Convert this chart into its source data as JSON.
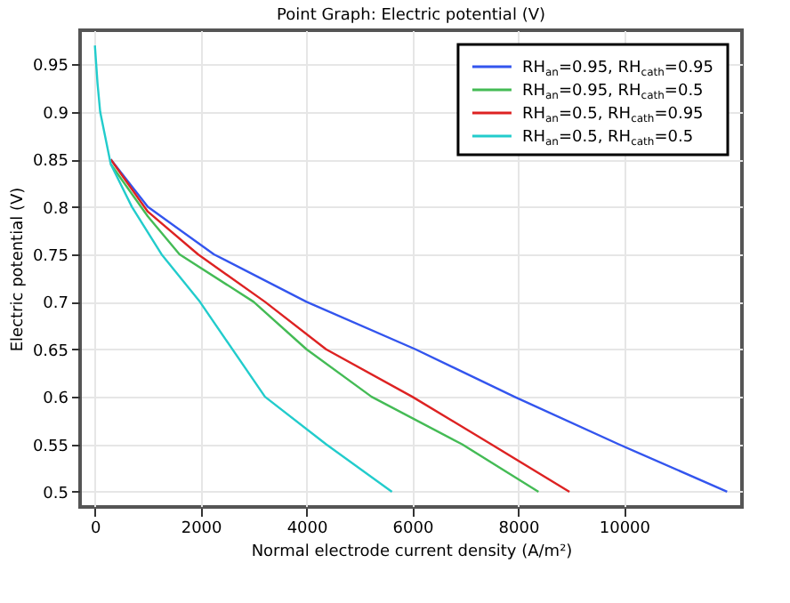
{
  "chart_data": {
    "type": "line",
    "title": "Point Graph: Electric potential (V)",
    "xlabel": "Normal electrode current density (A/m²)",
    "ylabel": "Electric potential (V)",
    "xlim": [
      -280,
      12230
    ],
    "ylim": [
      0.484,
      0.986
    ],
    "xticks": [
      0,
      2000,
      4000,
      6000,
      8000,
      10000
    ],
    "yticks": [
      0.5,
      0.55,
      0.6,
      0.65,
      0.7,
      0.75,
      0.8,
      0.85,
      0.9,
      0.95
    ],
    "grid": true,
    "legend": "top right",
    "line_style": "solid",
    "marker": "none",
    "series": [
      {
        "name": "RH$_{an}$=0.95, RH$_{cath}$=0.95",
        "color": "#3355ee",
        "x": [
          300,
          1000,
          2250,
          4000,
          6060,
          7930,
          9900,
          11950
        ],
        "values": [
          0.85,
          0.8,
          0.75,
          0.7,
          0.65,
          0.6,
          0.55,
          0.5
        ]
      },
      {
        "name": "RH$_{an}$=0.95, RH$_{cath}$=0.5",
        "color": "#44bb55",
        "x": [
          300,
          1000,
          1600,
          3000,
          4000,
          5230,
          6940,
          8385
        ],
        "values": [
          0.845,
          0.79,
          0.75,
          0.7,
          0.65,
          0.6,
          0.55,
          0.5
        ]
      },
      {
        "name": "RH$_{an}$=0.5, RH$_{cath}$=0.95",
        "color": "#dd2222",
        "x": [
          300,
          1000,
          1950,
          3215,
          4370,
          6000,
          7490,
          8970
        ],
        "values": [
          0.85,
          0.795,
          0.75,
          0.7,
          0.65,
          0.6,
          0.55,
          0.5
        ]
      },
      {
        "name": "RH$_{an}$=0.5, RH$_{cath}$=0.5",
        "color": "#22cccc",
        "x": [
          0,
          50,
          100,
          300,
          700,
          1260,
          1985,
          3215,
          4370,
          5615
        ],
        "values": [
          0.97,
          0.93,
          0.9,
          0.845,
          0.8,
          0.75,
          0.7,
          0.6,
          0.55,
          0.5
        ]
      }
    ]
  }
}
